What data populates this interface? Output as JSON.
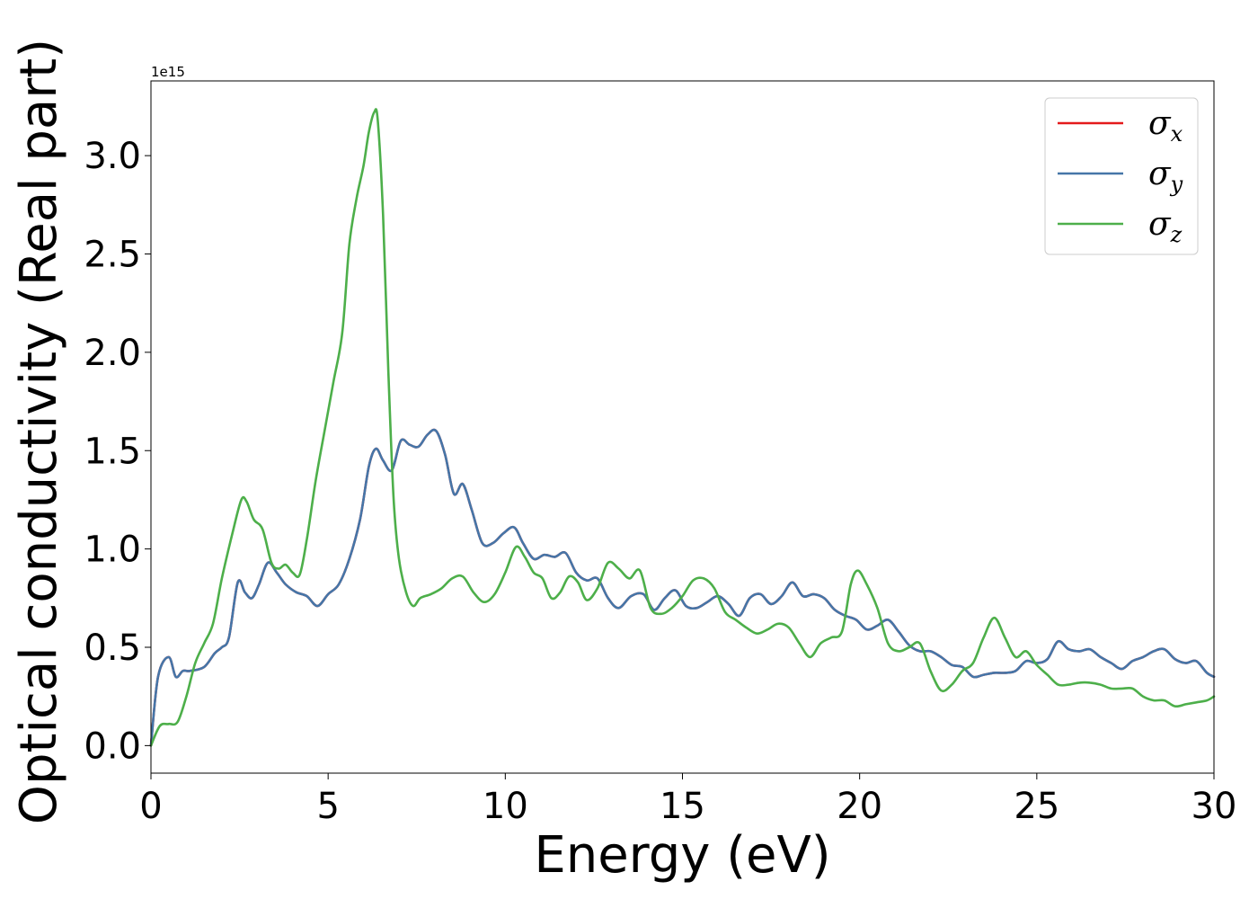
{
  "chart_data": {
    "type": "line",
    "xlabel": "Energy (eV)",
    "ylabel": "Optical conductivity (Real part)",
    "y_offset_label": "1e15",
    "xlim": [
      0,
      30
    ],
    "ylim": [
      -0.14,
      3.38
    ],
    "x_ticks": [
      0,
      5,
      10,
      15,
      20,
      25,
      30
    ],
    "x_tick_labels": [
      "0",
      "5",
      "10",
      "15",
      "20",
      "25",
      "30"
    ],
    "y_ticks": [
      0.0,
      0.5,
      1.0,
      1.5,
      2.0,
      2.5,
      3.0
    ],
    "y_tick_labels": [
      "0.0",
      "0.5",
      "1.0",
      "1.5",
      "2.0",
      "2.5",
      "3.0"
    ],
    "grid": false,
    "legend_placement": "top-right",
    "series": [
      {
        "name": "σx",
        "symbol": "σ",
        "subscript": "x",
        "color": "#e41a1c",
        "x": [
          0,
          0.2,
          0.5,
          0.7,
          0.9,
          1.1,
          1.5,
          1.8,
          2.0,
          2.2,
          2.45,
          2.65,
          2.85,
          3.05,
          3.3,
          3.55,
          3.8,
          4.1,
          4.4,
          4.7,
          5.0,
          5.3,
          5.6,
          5.9,
          6.15,
          6.35,
          6.55,
          6.8,
          7.05,
          7.3,
          7.55,
          7.8,
          8.05,
          8.3,
          8.55,
          8.8,
          9.05,
          9.35,
          9.65,
          9.95,
          10.25,
          10.5,
          10.8,
          11.1,
          11.4,
          11.7,
          12.0,
          12.3,
          12.6,
          12.9,
          13.2,
          13.55,
          13.9,
          14.2,
          14.5,
          14.8,
          15.1,
          15.4,
          15.7,
          16.0,
          16.3,
          16.6,
          16.9,
          17.2,
          17.5,
          17.8,
          18.1,
          18.4,
          18.7,
          19.0,
          19.3,
          19.6,
          19.9,
          20.2,
          20.5,
          20.8,
          21.1,
          21.4,
          21.7,
          22.0,
          22.3,
          22.6,
          22.9,
          23.2,
          23.5,
          23.8,
          24.1,
          24.4,
          24.7,
          25.0,
          25.3,
          25.6,
          25.9,
          26.2,
          26.5,
          26.8,
          27.1,
          27.4,
          27.7,
          28.0,
          28.3,
          28.6,
          28.9,
          29.2,
          29.5,
          29.8,
          30.0
        ],
        "y": [
          0.0,
          0.35,
          0.45,
          0.35,
          0.38,
          0.38,
          0.4,
          0.47,
          0.5,
          0.55,
          0.83,
          0.78,
          0.75,
          0.82,
          0.93,
          0.88,
          0.82,
          0.78,
          0.76,
          0.71,
          0.77,
          0.82,
          0.95,
          1.15,
          1.42,
          1.51,
          1.45,
          1.4,
          1.55,
          1.53,
          1.52,
          1.58,
          1.6,
          1.48,
          1.28,
          1.33,
          1.2,
          1.03,
          1.03,
          1.08,
          1.11,
          1.03,
          0.95,
          0.97,
          0.96,
          0.98,
          0.88,
          0.84,
          0.85,
          0.75,
          0.7,
          0.76,
          0.77,
          0.69,
          0.75,
          0.79,
          0.71,
          0.7,
          0.73,
          0.76,
          0.72,
          0.66,
          0.75,
          0.77,
          0.72,
          0.76,
          0.83,
          0.76,
          0.77,
          0.75,
          0.69,
          0.66,
          0.64,
          0.59,
          0.61,
          0.64,
          0.58,
          0.51,
          0.48,
          0.48,
          0.45,
          0.41,
          0.4,
          0.35,
          0.36,
          0.37,
          0.37,
          0.38,
          0.43,
          0.42,
          0.44,
          0.53,
          0.49,
          0.48,
          0.49,
          0.45,
          0.42,
          0.39,
          0.43,
          0.45,
          0.48,
          0.49,
          0.44,
          0.42,
          0.43,
          0.37,
          0.35
        ]
      },
      {
        "name": "σy",
        "symbol": "σ",
        "subscript": "y",
        "color": "#4576a8",
        "x": [
          0,
          0.2,
          0.5,
          0.7,
          0.9,
          1.1,
          1.5,
          1.8,
          2.0,
          2.2,
          2.45,
          2.65,
          2.85,
          3.05,
          3.3,
          3.55,
          3.8,
          4.1,
          4.4,
          4.7,
          5.0,
          5.3,
          5.6,
          5.9,
          6.15,
          6.35,
          6.55,
          6.8,
          7.05,
          7.3,
          7.55,
          7.8,
          8.05,
          8.3,
          8.55,
          8.8,
          9.05,
          9.35,
          9.65,
          9.95,
          10.25,
          10.5,
          10.8,
          11.1,
          11.4,
          11.7,
          12.0,
          12.3,
          12.6,
          12.9,
          13.2,
          13.55,
          13.9,
          14.2,
          14.5,
          14.8,
          15.1,
          15.4,
          15.7,
          16.0,
          16.3,
          16.6,
          16.9,
          17.2,
          17.5,
          17.8,
          18.1,
          18.4,
          18.7,
          19.0,
          19.3,
          19.6,
          19.9,
          20.2,
          20.5,
          20.8,
          21.1,
          21.4,
          21.7,
          22.0,
          22.3,
          22.6,
          22.9,
          23.2,
          23.5,
          23.8,
          24.1,
          24.4,
          24.7,
          25.0,
          25.3,
          25.6,
          25.9,
          26.2,
          26.5,
          26.8,
          27.1,
          27.4,
          27.7,
          28.0,
          28.3,
          28.6,
          28.9,
          29.2,
          29.5,
          29.8,
          30.0
        ],
        "y": [
          0.0,
          0.35,
          0.45,
          0.35,
          0.38,
          0.38,
          0.4,
          0.47,
          0.5,
          0.55,
          0.83,
          0.78,
          0.75,
          0.82,
          0.93,
          0.88,
          0.82,
          0.78,
          0.76,
          0.71,
          0.77,
          0.82,
          0.95,
          1.15,
          1.42,
          1.51,
          1.45,
          1.4,
          1.55,
          1.53,
          1.52,
          1.58,
          1.6,
          1.48,
          1.28,
          1.33,
          1.2,
          1.03,
          1.03,
          1.08,
          1.11,
          1.03,
          0.95,
          0.97,
          0.96,
          0.98,
          0.88,
          0.84,
          0.85,
          0.75,
          0.7,
          0.76,
          0.77,
          0.69,
          0.75,
          0.79,
          0.71,
          0.7,
          0.73,
          0.76,
          0.72,
          0.66,
          0.75,
          0.77,
          0.72,
          0.76,
          0.83,
          0.76,
          0.77,
          0.75,
          0.69,
          0.66,
          0.64,
          0.59,
          0.61,
          0.64,
          0.58,
          0.51,
          0.48,
          0.48,
          0.45,
          0.41,
          0.4,
          0.35,
          0.36,
          0.37,
          0.37,
          0.38,
          0.43,
          0.42,
          0.44,
          0.53,
          0.49,
          0.48,
          0.49,
          0.45,
          0.42,
          0.39,
          0.43,
          0.45,
          0.48,
          0.49,
          0.44,
          0.42,
          0.43,
          0.37,
          0.35
        ]
      },
      {
        "name": "σz",
        "symbol": "σ",
        "subscript": "z",
        "color": "#4daf4a",
        "x": [
          0,
          0.25,
          0.5,
          0.75,
          1.0,
          1.25,
          1.5,
          1.75,
          2.0,
          2.3,
          2.55,
          2.7,
          2.9,
          3.15,
          3.4,
          3.6,
          3.8,
          4.0,
          4.2,
          4.4,
          4.65,
          4.9,
          5.15,
          5.4,
          5.6,
          5.8,
          6.0,
          6.15,
          6.3,
          6.4,
          6.55,
          6.7,
          6.85,
          7.0,
          7.2,
          7.4,
          7.6,
          7.9,
          8.2,
          8.5,
          8.8,
          9.1,
          9.4,
          9.7,
          10.0,
          10.3,
          10.55,
          10.8,
          11.05,
          11.3,
          11.55,
          11.8,
          12.05,
          12.3,
          12.6,
          12.9,
          13.2,
          13.5,
          13.8,
          14.1,
          14.4,
          14.7,
          15.0,
          15.3,
          15.6,
          15.9,
          16.2,
          16.5,
          16.8,
          17.1,
          17.4,
          17.7,
          18.0,
          18.3,
          18.6,
          18.9,
          19.2,
          19.5,
          19.75,
          19.95,
          20.2,
          20.5,
          20.8,
          21.1,
          21.4,
          21.7,
          22.0,
          22.3,
          22.6,
          22.9,
          23.2,
          23.5,
          23.8,
          24.1,
          24.4,
          24.7,
          25.0,
          25.3,
          25.6,
          25.9,
          26.2,
          26.5,
          26.8,
          27.1,
          27.4,
          27.7,
          28.0,
          28.3,
          28.6,
          28.9,
          29.2,
          29.5,
          29.8,
          30.0
        ],
        "y": [
          0.0,
          0.1,
          0.11,
          0.12,
          0.25,
          0.42,
          0.52,
          0.62,
          0.85,
          1.08,
          1.25,
          1.24,
          1.15,
          1.1,
          0.93,
          0.9,
          0.92,
          0.88,
          0.87,
          1.05,
          1.35,
          1.6,
          1.85,
          2.1,
          2.55,
          2.78,
          2.95,
          3.12,
          3.22,
          3.18,
          2.7,
          1.9,
          1.25,
          0.95,
          0.78,
          0.71,
          0.75,
          0.77,
          0.8,
          0.85,
          0.86,
          0.78,
          0.73,
          0.77,
          0.88,
          1.01,
          0.96,
          0.88,
          0.85,
          0.75,
          0.78,
          0.86,
          0.83,
          0.74,
          0.8,
          0.93,
          0.9,
          0.85,
          0.89,
          0.7,
          0.67,
          0.7,
          0.76,
          0.84,
          0.85,
          0.8,
          0.68,
          0.64,
          0.6,
          0.57,
          0.59,
          0.62,
          0.6,
          0.52,
          0.45,
          0.52,
          0.55,
          0.58,
          0.82,
          0.89,
          0.82,
          0.7,
          0.52,
          0.48,
          0.5,
          0.52,
          0.38,
          0.28,
          0.31,
          0.38,
          0.42,
          0.55,
          0.65,
          0.55,
          0.45,
          0.48,
          0.41,
          0.36,
          0.31,
          0.31,
          0.32,
          0.32,
          0.31,
          0.29,
          0.29,
          0.29,
          0.25,
          0.23,
          0.23,
          0.2,
          0.21,
          0.22,
          0.23,
          0.25
        ]
      }
    ]
  }
}
